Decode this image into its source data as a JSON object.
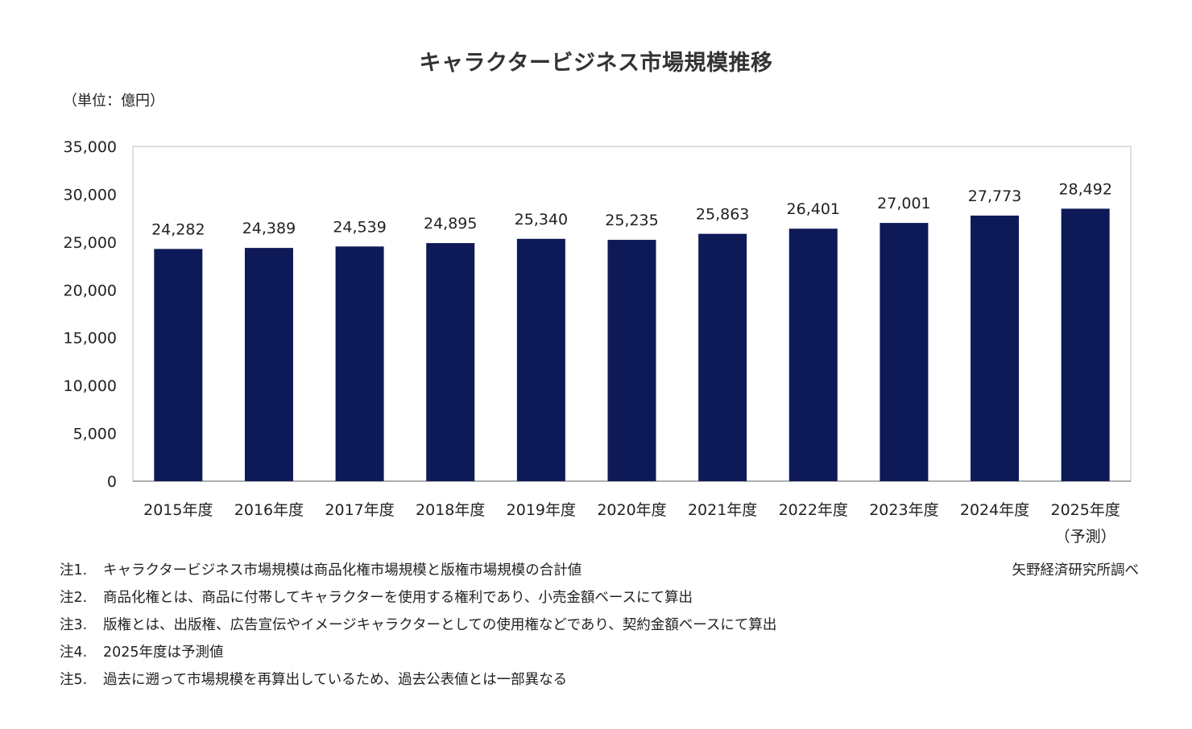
{
  "chart_data": {
    "type": "bar",
    "title": "キャラクタービジネス市場規模推移",
    "unit_label": "（単位：億円）",
    "categories": [
      "2015年度",
      "2016年度",
      "2017年度",
      "2018年度",
      "2019年度",
      "2020年度",
      "2021年度",
      "2022年度",
      "2023年度",
      "2024年度",
      "2025年度"
    ],
    "category_sublabels": [
      "",
      "",
      "",
      "",
      "",
      "",
      "",
      "",
      "",
      "",
      "（予測）"
    ],
    "values": [
      24282,
      24389,
      24539,
      24895,
      25340,
      25235,
      25863,
      26401,
      27001,
      27773,
      28492
    ],
    "value_labels": [
      "24,282",
      "24,389",
      "24,539",
      "24,895",
      "25,340",
      "25,235",
      "25,863",
      "26,401",
      "27,001",
      "27,773",
      "28,492"
    ],
    "ylim": [
      0,
      35000
    ],
    "yticks": [
      0,
      5000,
      10000,
      15000,
      20000,
      25000,
      30000,
      35000
    ],
    "ytick_labels": [
      "0",
      "5,000",
      "10,000",
      "15,000",
      "20,000",
      "25,000",
      "30,000",
      "35,000"
    ],
    "xlabel": "",
    "ylabel": "",
    "grid": false,
    "bar_color": "#0e1a57"
  },
  "notes": [
    {
      "label": "注1.",
      "text": "キャラクタービジネス市場規模は商品化権市場規模と版権市場規模の合計値"
    },
    {
      "label": "注2.",
      "text": "商品化権とは、商品に付帯してキャラクターを使用する権利であり、小売金額ベースにて算出"
    },
    {
      "label": "注3.",
      "text": "版権とは、出版権、広告宣伝やイメージキャラクターとしての使用権などであり、契約金額ベースにて算出"
    },
    {
      "label": "注4.",
      "text": "2025年度は予測値"
    },
    {
      "label": "注5.",
      "text": "過去に遡って市場規模を再算出しているため、過去公表値とは一部異なる"
    }
  ],
  "source": "矢野経済研究所調べ"
}
